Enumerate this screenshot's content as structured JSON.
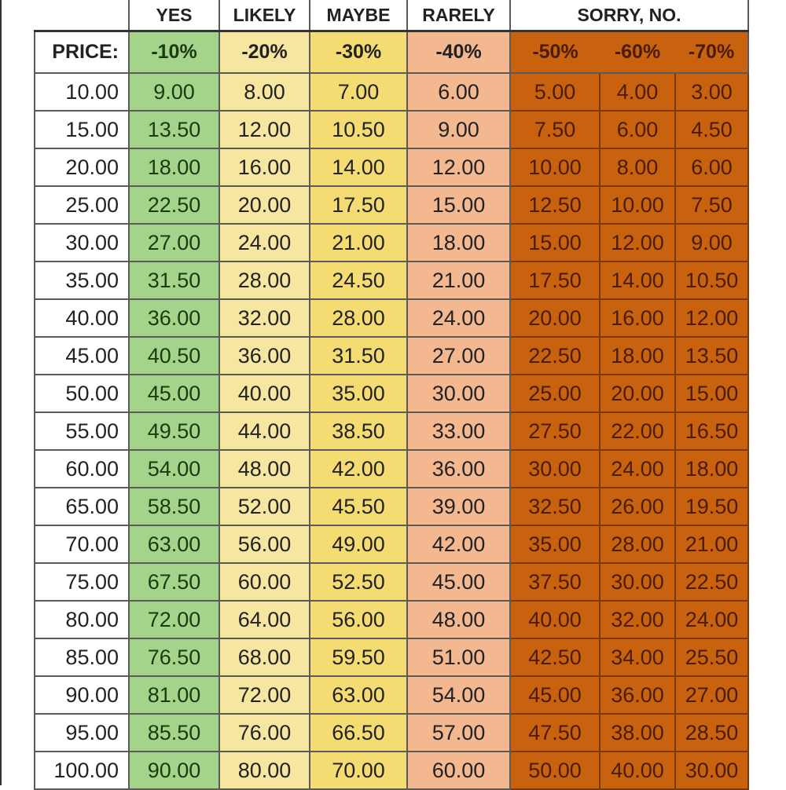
{
  "headers": {
    "yes": "YES",
    "likely": "LIKELY",
    "maybe": "MAYBE",
    "rarely": "RARELY",
    "sorry": "SORRY, NO."
  },
  "discounts": [
    "PRICE:",
    "-10%",
    "-20%",
    "-30%",
    "-40%",
    "-50%",
    "-60%",
    "-70%"
  ],
  "colors": {
    "yes": "#a3d48a",
    "likely": "#f7e6a0",
    "maybe": "#f5dc72",
    "rarely": "#f3b890",
    "sorry": "#c8620f"
  },
  "rows": [
    [
      "10.00",
      "9.00",
      "8.00",
      "7.00",
      "6.00",
      "5.00",
      "4.00",
      "3.00"
    ],
    [
      "15.00",
      "13.50",
      "12.00",
      "10.50",
      "9.00",
      "7.50",
      "6.00",
      "4.50"
    ],
    [
      "20.00",
      "18.00",
      "16.00",
      "14.00",
      "12.00",
      "10.00",
      "8.00",
      "6.00"
    ],
    [
      "25.00",
      "22.50",
      "20.00",
      "17.50",
      "15.00",
      "12.50",
      "10.00",
      "7.50"
    ],
    [
      "30.00",
      "27.00",
      "24.00",
      "21.00",
      "18.00",
      "15.00",
      "12.00",
      "9.00"
    ],
    [
      "35.00",
      "31.50",
      "28.00",
      "24.50",
      "21.00",
      "17.50",
      "14.00",
      "10.50"
    ],
    [
      "40.00",
      "36.00",
      "32.00",
      "28.00",
      "24.00",
      "20.00",
      "16.00",
      "12.00"
    ],
    [
      "45.00",
      "40.50",
      "36.00",
      "31.50",
      "27.00",
      "22.50",
      "18.00",
      "13.50"
    ],
    [
      "50.00",
      "45.00",
      "40.00",
      "35.00",
      "30.00",
      "25.00",
      "20.00",
      "15.00"
    ],
    [
      "55.00",
      "49.50",
      "44.00",
      "38.50",
      "33.00",
      "27.50",
      "22.00",
      "16.50"
    ],
    [
      "60.00",
      "54.00",
      "48.00",
      "42.00",
      "36.00",
      "30.00",
      "24.00",
      "18.00"
    ],
    [
      "65.00",
      "58.50",
      "52.00",
      "45.50",
      "39.00",
      "32.50",
      "26.00",
      "19.50"
    ],
    [
      "70.00",
      "63.00",
      "56.00",
      "49.00",
      "42.00",
      "35.00",
      "28.00",
      "21.00"
    ],
    [
      "75.00",
      "67.50",
      "60.00",
      "52.50",
      "45.00",
      "37.50",
      "30.00",
      "22.50"
    ],
    [
      "80.00",
      "72.00",
      "64.00",
      "56.00",
      "48.00",
      "40.00",
      "32.00",
      "24.00"
    ],
    [
      "85.00",
      "76.50",
      "68.00",
      "59.50",
      "51.00",
      "42.50",
      "34.00",
      "25.50"
    ],
    [
      "90.00",
      "81.00",
      "72.00",
      "63.00",
      "54.00",
      "45.00",
      "36.00",
      "27.00"
    ],
    [
      "95.00",
      "85.50",
      "76.00",
      "66.50",
      "57.00",
      "47.50",
      "38.00",
      "28.50"
    ],
    [
      "100.00",
      "90.00",
      "80.00",
      "70.00",
      "60.00",
      "50.00",
      "40.00",
      "30.00"
    ]
  ]
}
